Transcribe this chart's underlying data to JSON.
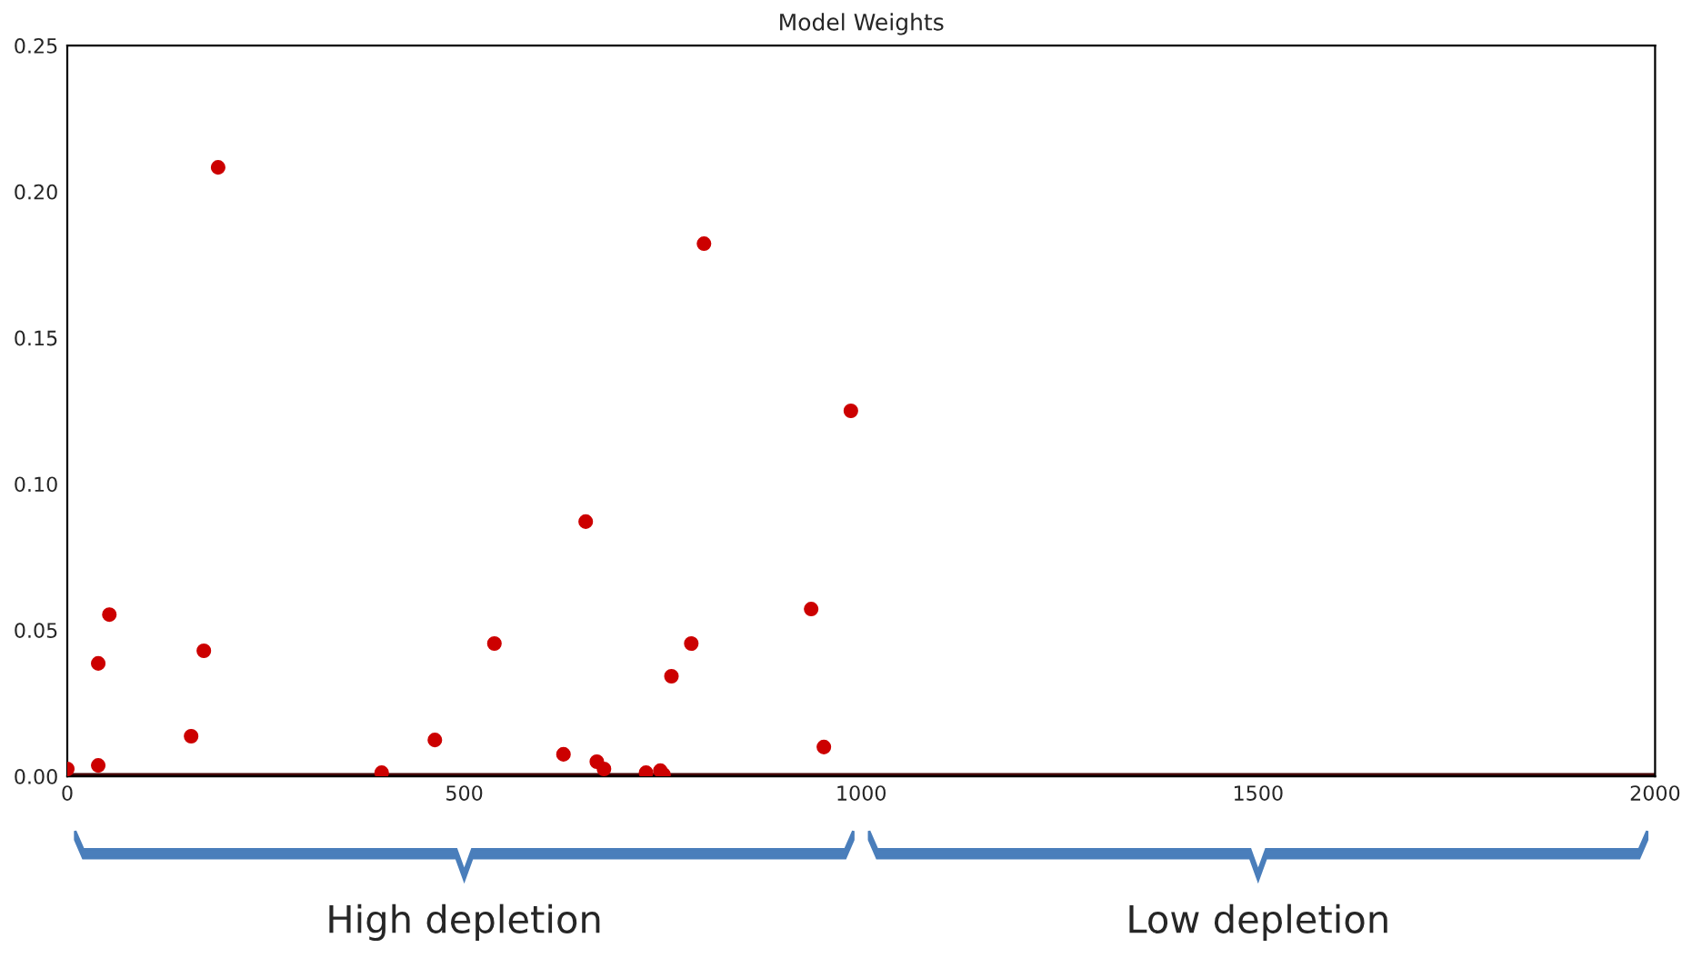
{
  "chart_data": {
    "type": "scatter",
    "title": "Model Weights",
    "xlim": [
      0,
      2000
    ],
    "xticks": [
      0,
      500,
      1000,
      1500,
      2000
    ],
    "ylim": [
      0,
      0.25
    ],
    "yticks": [
      {
        "value": 0,
        "label": "0.00"
      },
      {
        "value": 0.05,
        "label": "0.05"
      },
      {
        "value": 0.1,
        "label": "0.10"
      },
      {
        "value": 0.15,
        "label": "0.15"
      },
      {
        "value": 0.2,
        "label": "0.20"
      },
      {
        "value": 0.25,
        "label": "0.25"
      }
    ],
    "grid": false,
    "legend": false,
    "annotations": [
      "High depletion",
      "Low depletion"
    ],
    "series": [
      {
        "type": "line",
        "marker": "none",
        "color": "#400000",
        "x": [
          0,
          2000
        ],
        "values": [
          0,
          0
        ]
      },
      {
        "marker": "circle",
        "color": "#cc0000",
        "x": [
          0,
          39,
          39,
          53,
          156,
          172,
          190,
          396,
          463,
          538,
          625,
          653,
          667,
          676,
          729,
          747,
          751,
          761,
          786,
          802,
          937,
          953,
          987
        ],
        "values": [
          0.0025,
          0.0386,
          0.0037,
          0.0553,
          0.0137,
          0.0429,
          0.2083,
          0.0012,
          0.0124,
          0.0454,
          0.0075,
          0.0871,
          0.005,
          0.0025,
          0.0012,
          0.0019,
          0.0006,
          0.0342,
          0.0454,
          0.1822,
          0.0572,
          0.01,
          0.125
        ]
      }
    ]
  }
}
